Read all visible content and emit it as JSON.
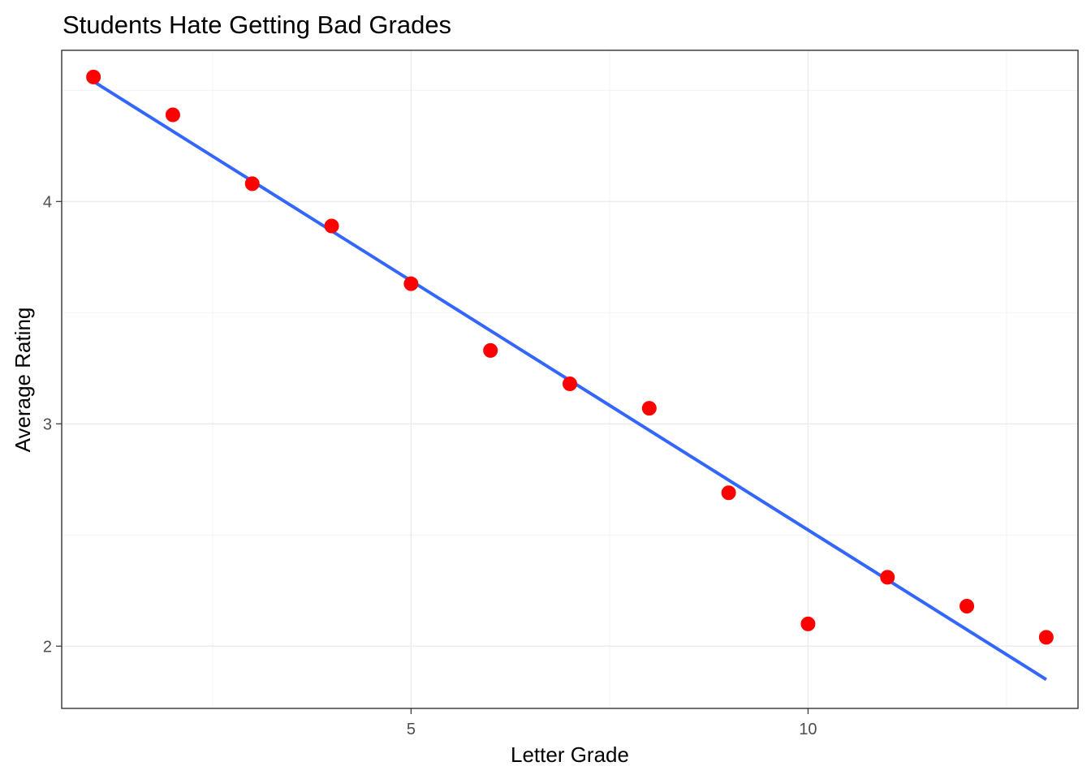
{
  "chart_data": {
    "type": "scatter",
    "title": "Students Hate Getting Bad Grades",
    "xlabel": "Letter Grade",
    "ylabel": "Average Rating",
    "xlim": [
      0.6,
      13.4
    ],
    "ylim": [
      1.72,
      4.68
    ],
    "x_ticks": [
      5,
      10
    ],
    "y_ticks": [
      2,
      3,
      4
    ],
    "x_tick_labels": [
      "5",
      "10"
    ],
    "y_tick_labels": [
      "2",
      "3",
      "4"
    ],
    "x_minor": [
      2.5,
      7.5,
      12.5
    ],
    "y_minor": [
      2.5,
      3.5,
      4.5
    ],
    "grid": true,
    "legend": "none",
    "points": [
      {
        "x": 1,
        "y": 4.56
      },
      {
        "x": 2,
        "y": 4.39
      },
      {
        "x": 3,
        "y": 4.08
      },
      {
        "x": 4,
        "y": 3.89
      },
      {
        "x": 5,
        "y": 3.63
      },
      {
        "x": 6,
        "y": 3.33
      },
      {
        "x": 7,
        "y": 3.18
      },
      {
        "x": 8,
        "y": 3.07
      },
      {
        "x": 9,
        "y": 2.69
      },
      {
        "x": 10,
        "y": 2.1
      },
      {
        "x": 11,
        "y": 2.31
      },
      {
        "x": 12,
        "y": 2.18
      },
      {
        "x": 13,
        "y": 2.04
      }
    ],
    "fit_line": {
      "x": [
        1,
        13
      ],
      "y": [
        4.54,
        1.85
      ]
    },
    "point_color": "#ff0000",
    "line_color": "#3366ff"
  }
}
